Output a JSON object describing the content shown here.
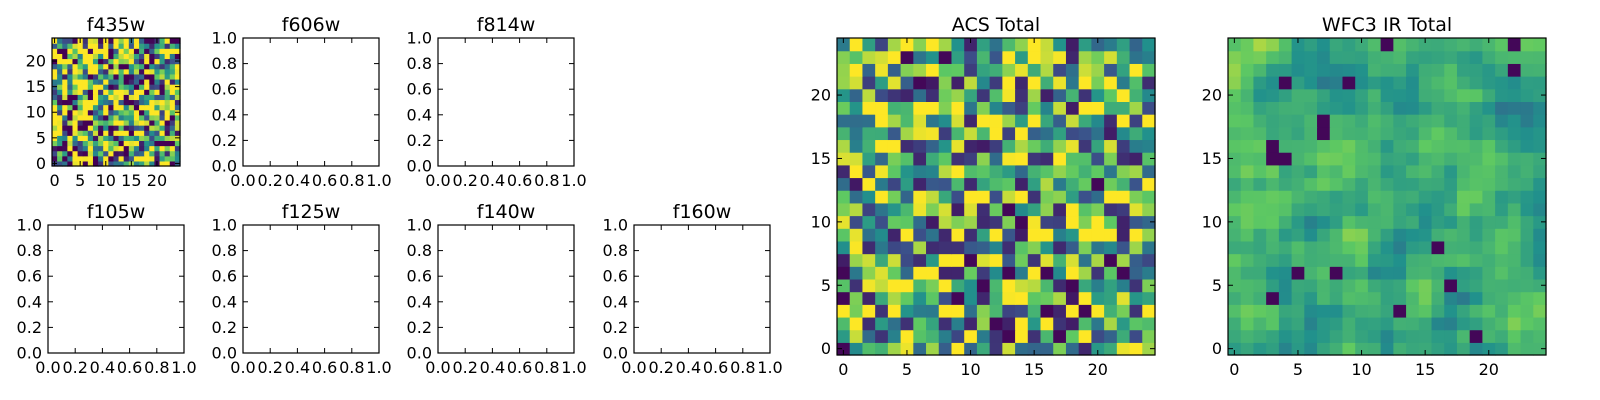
{
  "chart_data": [
    {
      "id": "f435w",
      "type": "heatmap",
      "title": "f435w",
      "xlim": [
        -0.5,
        24.5
      ],
      "ylim": [
        -0.5,
        24.5
      ],
      "xticks": [
        0,
        5,
        10,
        15,
        20
      ],
      "yticks": [
        0,
        5,
        10,
        15,
        20
      ],
      "grid": false,
      "colormap": "viridis",
      "seed": 11,
      "vmin": 0,
      "vmax": 1,
      "contrast": 1.6
    },
    {
      "id": "f606w",
      "type": "heatmap",
      "title": "f606w",
      "xlim": [
        0,
        1
      ],
      "ylim": [
        0,
        1
      ],
      "xticks": [
        "0.0",
        "0.2",
        "0.4",
        "0.6",
        "0.8",
        "1.0"
      ],
      "yticks": [
        "0.0",
        "0.2",
        "0.4",
        "0.6",
        "0.8",
        "1.0"
      ],
      "grid": false,
      "empty": true
    },
    {
      "id": "f814w",
      "type": "heatmap",
      "title": "f814w",
      "xlim": [
        0,
        1
      ],
      "ylim": [
        0,
        1
      ],
      "xticks": [
        "0.0",
        "0.2",
        "0.4",
        "0.6",
        "0.8",
        "1.0"
      ],
      "yticks": [
        "0.0",
        "0.2",
        "0.4",
        "0.6",
        "0.8",
        "1.0"
      ],
      "grid": false,
      "empty": true
    },
    {
      "id": "f105w",
      "type": "heatmap",
      "title": "f105w",
      "xlim": [
        0,
        1
      ],
      "ylim": [
        0,
        1
      ],
      "xticks": [
        "0.0",
        "0.2",
        "0.4",
        "0.6",
        "0.8",
        "1.0"
      ],
      "yticks": [
        "0.0",
        "0.2",
        "0.4",
        "0.6",
        "0.8",
        "1.0"
      ],
      "grid": false,
      "empty": true
    },
    {
      "id": "f125w",
      "type": "heatmap",
      "title": "f125w",
      "xlim": [
        0,
        1
      ],
      "ylim": [
        0,
        1
      ],
      "xticks": [
        "0.0",
        "0.2",
        "0.4",
        "0.6",
        "0.8",
        "1.0"
      ],
      "yticks": [
        "0.0",
        "0.2",
        "0.4",
        "0.6",
        "0.8",
        "1.0"
      ],
      "grid": false,
      "empty": true
    },
    {
      "id": "f140w",
      "type": "heatmap",
      "title": "f140w",
      "xlim": [
        0,
        1
      ],
      "ylim": [
        0,
        1
      ],
      "xticks": [
        "0.0",
        "0.2",
        "0.4",
        "0.6",
        "0.8",
        "1.0"
      ],
      "yticks": [
        "0.0",
        "0.2",
        "0.4",
        "0.6",
        "0.8",
        "1.0"
      ],
      "grid": false,
      "empty": true
    },
    {
      "id": "f160w",
      "type": "heatmap",
      "title": "f160w",
      "xlim": [
        0,
        1
      ],
      "ylim": [
        0,
        1
      ],
      "xticks": [
        "0.0",
        "0.2",
        "0.4",
        "0.6",
        "0.8",
        "1.0"
      ],
      "yticks": [
        "0.0",
        "0.2",
        "0.4",
        "0.6",
        "0.8",
        "1.0"
      ],
      "grid": false,
      "empty": true
    },
    {
      "id": "acs-total",
      "type": "heatmap",
      "title": "ACS Total",
      "xlim": [
        -0.5,
        24.5
      ],
      "ylim": [
        -0.5,
        24.5
      ],
      "xticks": [
        0,
        5,
        10,
        15,
        20
      ],
      "yticks": [
        0,
        5,
        10,
        15,
        20
      ],
      "grid": false,
      "colormap": "viridis",
      "seed": 23,
      "vmin": 0,
      "vmax": 1,
      "contrast": 1.1
    },
    {
      "id": "wfc3-ir-total",
      "type": "heatmap",
      "title": "WFC3 IR Total",
      "xlim": [
        -0.5,
        24.5
      ],
      "ylim": [
        -0.5,
        24.5
      ],
      "xticks": [
        0,
        5,
        10,
        15,
        20
      ],
      "yticks": [
        0,
        5,
        10,
        15,
        20
      ],
      "grid": false,
      "colormap": "viridis",
      "seed": 37,
      "vmin": 0,
      "vmax": 1,
      "contrast": 0.9,
      "smooth": true
    }
  ],
  "colors": {
    "frame": "#000000",
    "background": "#ffffff"
  }
}
